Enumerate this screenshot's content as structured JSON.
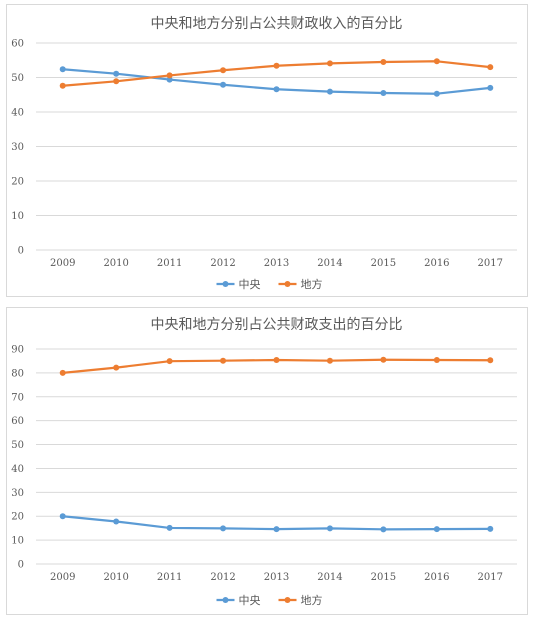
{
  "chart_data": [
    {
      "type": "line",
      "title": "中央和地方分别占公共财政收入的百分比",
      "categories": [
        "2009",
        "2010",
        "2011",
        "2012",
        "2013",
        "2014",
        "2015",
        "2016",
        "2017"
      ],
      "ylim": [
        0,
        60
      ],
      "yticks": [
        0,
        10,
        20,
        30,
        40,
        50,
        60
      ],
      "grid": true,
      "legend": "bottom",
      "series": [
        {
          "name": "中央",
          "color": "#5B9BD5",
          "values": [
            52.4,
            51.1,
            49.4,
            47.9,
            46.6,
            45.9,
            45.5,
            45.3,
            47.0
          ]
        },
        {
          "name": "地方",
          "color": "#ED7D31",
          "values": [
            47.6,
            48.9,
            50.6,
            52.1,
            53.4,
            54.1,
            54.5,
            54.7,
            53.0
          ]
        }
      ]
    },
    {
      "type": "line",
      "title": "中央和地方分别占公共财政支出的百分比",
      "categories": [
        "2009",
        "2010",
        "2011",
        "2012",
        "2013",
        "2014",
        "2015",
        "2016",
        "2017"
      ],
      "ylim": [
        0,
        90
      ],
      "yticks": [
        0,
        10,
        20,
        30,
        40,
        50,
        60,
        70,
        80,
        90
      ],
      "grid": true,
      "legend": "bottom",
      "series": [
        {
          "name": "中央",
          "color": "#5B9BD5",
          "values": [
            20.0,
            17.8,
            15.1,
            14.9,
            14.6,
            14.9,
            14.5,
            14.6,
            14.7
          ]
        },
        {
          "name": "地方",
          "color": "#ED7D31",
          "values": [
            80.0,
            82.2,
            84.9,
            85.1,
            85.4,
            85.1,
            85.5,
            85.4,
            85.3
          ]
        }
      ]
    }
  ]
}
